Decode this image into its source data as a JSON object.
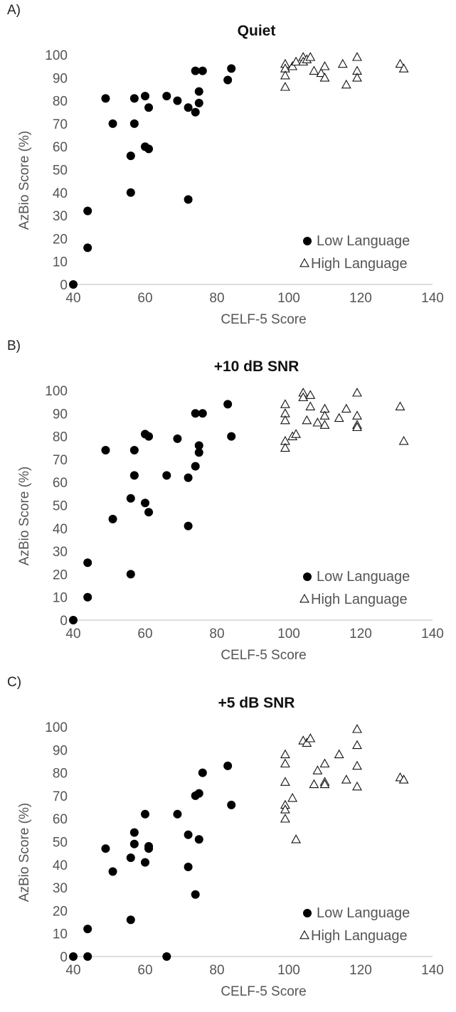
{
  "chart_data": [
    {
      "panel_label": "A)",
      "type": "scatter",
      "title": "Quiet",
      "xlabel": "CELF-5 Score",
      "ylabel": "AzBio Score (%)",
      "xlim": [
        40,
        140
      ],
      "ylim": [
        0,
        100
      ],
      "xticks": [
        "40",
        "60",
        "80",
        "100",
        "120",
        "140"
      ],
      "yticks": [
        "0",
        "10",
        "20",
        "30",
        "40",
        "50",
        "60",
        "70",
        "80",
        "90",
        "100"
      ],
      "grid": false,
      "legend_position": "bottom-right",
      "series": [
        {
          "name": "Low Language",
          "marker": "filled-circle",
          "color": "#000000",
          "points": [
            [
              40,
              0
            ],
            [
              44,
              16
            ],
            [
              44,
              32
            ],
            [
              49,
              81
            ],
            [
              51,
              70
            ],
            [
              56,
              56
            ],
            [
              56,
              40
            ],
            [
              57,
              81
            ],
            [
              57,
              70
            ],
            [
              60,
              82
            ],
            [
              60,
              60
            ],
            [
              61,
              77
            ],
            [
              61,
              59
            ],
            [
              66,
              82
            ],
            [
              69,
              80
            ],
            [
              72,
              77
            ],
            [
              72,
              37
            ],
            [
              74,
              75
            ],
            [
              74,
              93
            ],
            [
              75,
              84
            ],
            [
              75,
              79
            ],
            [
              76,
              93
            ],
            [
              83,
              89
            ],
            [
              84,
              94
            ]
          ]
        },
        {
          "name": "High Language",
          "marker": "open-triangle",
          "color": "#000000",
          "points": [
            [
              99,
              96
            ],
            [
              99,
              94
            ],
            [
              99,
              91
            ],
            [
              99,
              86
            ],
            [
              101,
              95
            ],
            [
              102,
              97
            ],
            [
              104,
              99
            ],
            [
              104,
              97
            ],
            [
              105,
              98
            ],
            [
              106,
              99
            ],
            [
              107,
              93
            ],
            [
              109,
              92
            ],
            [
              110,
              95
            ],
            [
              110,
              90
            ],
            [
              115,
              96
            ],
            [
              116,
              87
            ],
            [
              119,
              99
            ],
            [
              119,
              93
            ],
            [
              119,
              90
            ],
            [
              131,
              96
            ],
            [
              132,
              94
            ]
          ]
        }
      ]
    },
    {
      "panel_label": "B)",
      "type": "scatter",
      "title": "+10 dB SNR",
      "xlabel": "CELF-5 Score",
      "ylabel": "AzBio Score (%)",
      "xlim": [
        40,
        140
      ],
      "ylim": [
        0,
        100
      ],
      "xticks": [
        "40",
        "60",
        "80",
        "100",
        "120",
        "140"
      ],
      "yticks": [
        "0",
        "10",
        "20",
        "30",
        "40",
        "50",
        "60",
        "70",
        "80",
        "90",
        "100"
      ],
      "grid": false,
      "legend_position": "bottom-right",
      "series": [
        {
          "name": "Low Language",
          "marker": "filled-circle",
          "color": "#000000",
          "points": [
            [
              40,
              0
            ],
            [
              44,
              10
            ],
            [
              44,
              25
            ],
            [
              49,
              74
            ],
            [
              51,
              44
            ],
            [
              56,
              53
            ],
            [
              56,
              20
            ],
            [
              57,
              74
            ],
            [
              57,
              63
            ],
            [
              60,
              81
            ],
            [
              60,
              51
            ],
            [
              61,
              80
            ],
            [
              61,
              47
            ],
            [
              66,
              63
            ],
            [
              69,
              79
            ],
            [
              72,
              62
            ],
            [
              72,
              41
            ],
            [
              74,
              67
            ],
            [
              74,
              90
            ],
            [
              75,
              76
            ],
            [
              75,
              73
            ],
            [
              76,
              90
            ],
            [
              83,
              94
            ],
            [
              84,
              80
            ]
          ]
        },
        {
          "name": "High Language",
          "marker": "open-triangle",
          "color": "#000000",
          "points": [
            [
              99,
              94
            ],
            [
              99,
              90
            ],
            [
              99,
              87
            ],
            [
              99,
              78
            ],
            [
              99,
              75
            ],
            [
              101,
              80
            ],
            [
              102,
              81
            ],
            [
              104,
              99
            ],
            [
              104,
              97
            ],
            [
              105,
              87
            ],
            [
              106,
              98
            ],
            [
              106,
              93
            ],
            [
              108,
              86
            ],
            [
              110,
              92
            ],
            [
              110,
              89
            ],
            [
              110,
              85
            ],
            [
              114,
              88
            ],
            [
              116,
              92
            ],
            [
              119,
              99
            ],
            [
              119,
              89
            ],
            [
              119,
              85
            ],
            [
              119,
              84
            ],
            [
              131,
              93
            ],
            [
              132,
              78
            ]
          ]
        }
      ]
    },
    {
      "panel_label": "C)",
      "type": "scatter",
      "title": "+5 dB SNR",
      "xlabel": "CELF-5 Score",
      "ylabel": "AzBio Score (%)",
      "xlim": [
        40,
        140
      ],
      "ylim": [
        0,
        100
      ],
      "xticks": [
        "40",
        "60",
        "80",
        "100",
        "120",
        "140"
      ],
      "yticks": [
        "0",
        "10",
        "20",
        "30",
        "40",
        "50",
        "60",
        "70",
        "80",
        "90",
        "100"
      ],
      "grid": false,
      "legend_position": "bottom-right",
      "series": [
        {
          "name": "Low Language",
          "marker": "filled-circle",
          "color": "#000000",
          "points": [
            [
              40,
              0
            ],
            [
              44,
              0
            ],
            [
              44,
              12
            ],
            [
              49,
              47
            ],
            [
              51,
              37
            ],
            [
              56,
              43
            ],
            [
              56,
              16
            ],
            [
              57,
              54
            ],
            [
              57,
              49
            ],
            [
              60,
              62
            ],
            [
              60,
              41
            ],
            [
              61,
              48
            ],
            [
              61,
              47
            ],
            [
              66,
              0
            ],
            [
              69,
              62
            ],
            [
              72,
              53
            ],
            [
              72,
              39
            ],
            [
              74,
              70
            ],
            [
              74,
              27
            ],
            [
              75,
              71
            ],
            [
              75,
              51
            ],
            [
              76,
              80
            ],
            [
              83,
              83
            ],
            [
              84,
              66
            ]
          ]
        },
        {
          "name": "High Language",
          "marker": "open-triangle",
          "color": "#000000",
          "points": [
            [
              99,
              88
            ],
            [
              99,
              84
            ],
            [
              99,
              76
            ],
            [
              99,
              66
            ],
            [
              99,
              64
            ],
            [
              99,
              60
            ],
            [
              101,
              69
            ],
            [
              102,
              51
            ],
            [
              104,
              94
            ],
            [
              105,
              93
            ],
            [
              106,
              95
            ],
            [
              107,
              75
            ],
            [
              108,
              81
            ],
            [
              110,
              84
            ],
            [
              110,
              76
            ],
            [
              110,
              75
            ],
            [
              114,
              88
            ],
            [
              116,
              77
            ],
            [
              119,
              99
            ],
            [
              119,
              92
            ],
            [
              119,
              83
            ],
            [
              119,
              74
            ],
            [
              131,
              78
            ],
            [
              132,
              77
            ]
          ]
        }
      ]
    }
  ]
}
